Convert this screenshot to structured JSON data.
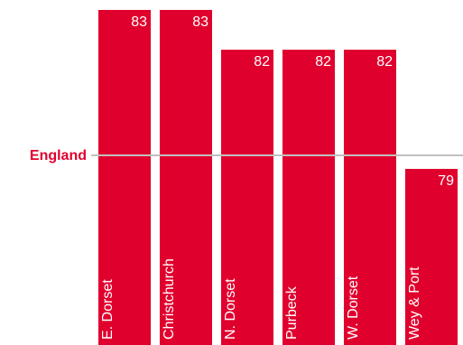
{
  "chart_data": {
    "type": "bar",
    "categories": [
      "E. Dorset",
      "Christchurch",
      "N. Dorset",
      "Purbeck",
      "W. Dorset",
      "Wey & Port"
    ],
    "values": [
      83,
      83,
      82,
      82,
      82,
      79
    ],
    "value_labels": [
      "83",
      "83",
      "82",
      "82",
      "82",
      "79"
    ],
    "reference_line": {
      "label": "England",
      "value": 80.3
    },
    "ylim": [
      74,
      84
    ],
    "colors": {
      "bar": "#e0002d",
      "reference_line": "#c0c0c0",
      "reference_label": "#e0002d",
      "value_text": "#ffffff",
      "category_text": "#ffffff"
    },
    "grid": false,
    "legend": "none"
  }
}
